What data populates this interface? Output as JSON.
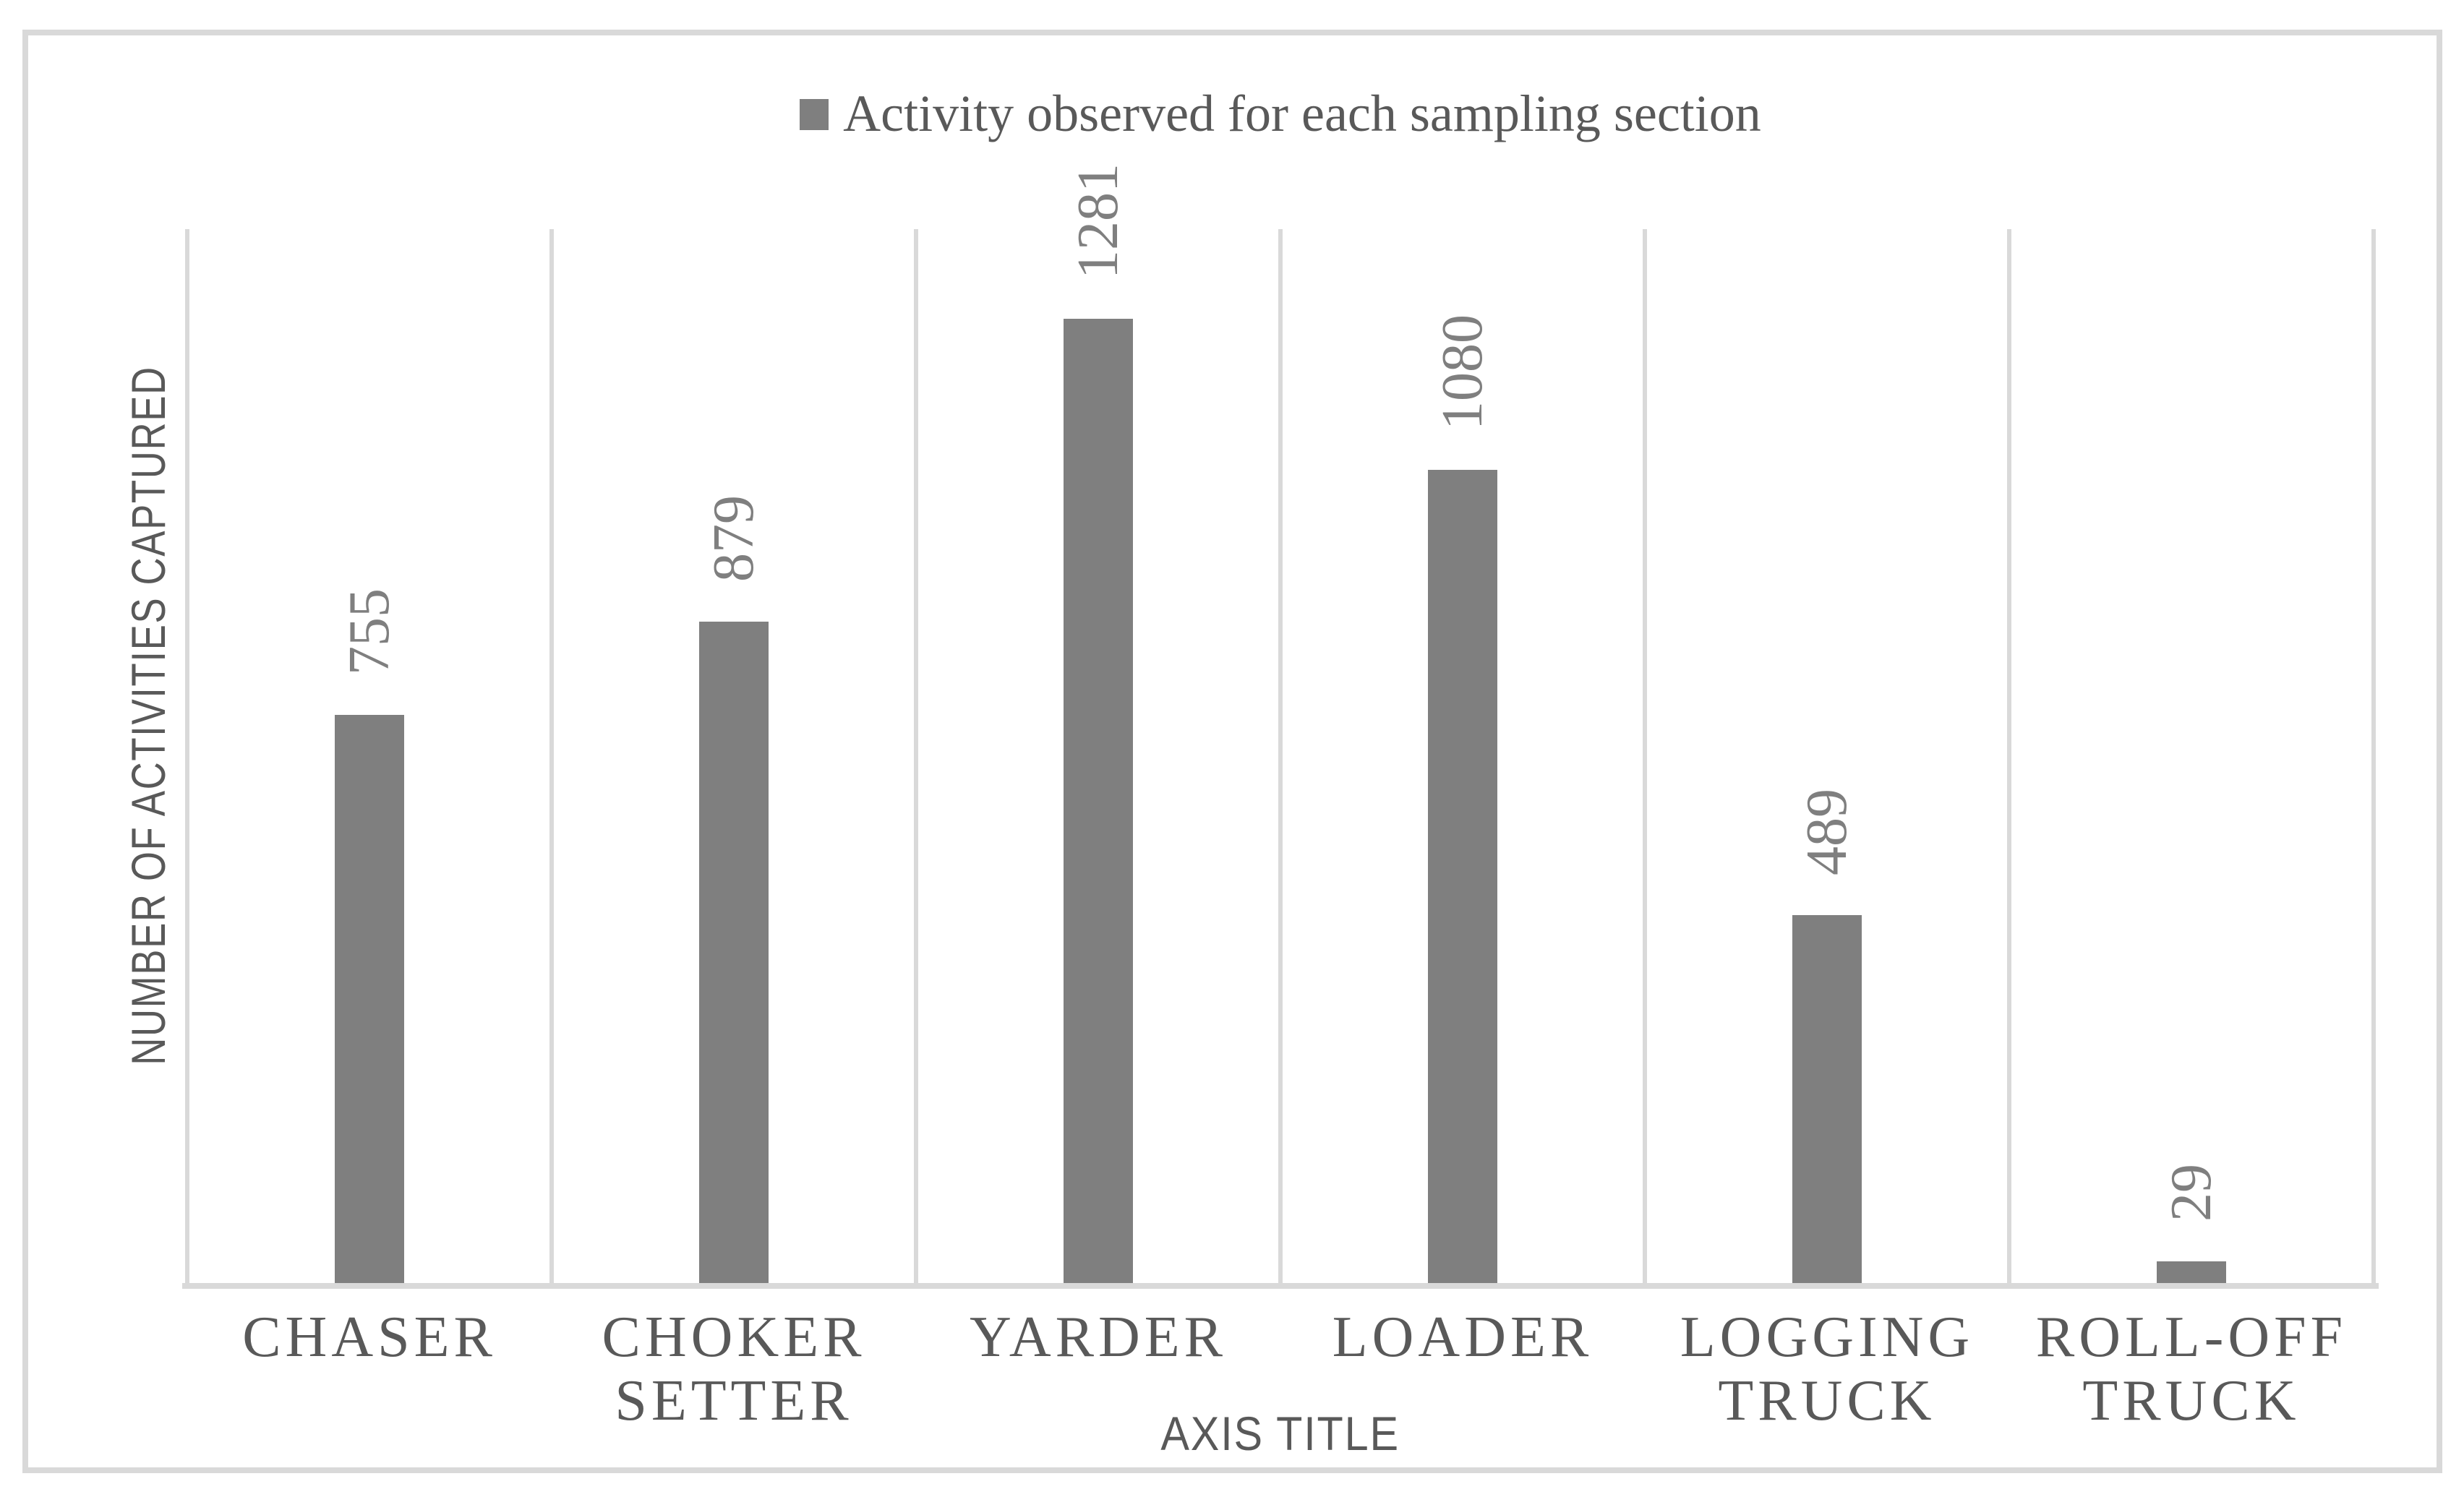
{
  "chart_data": {
    "type": "bar",
    "legend": "Activity observed for each sampling section",
    "legend_position": "top-center",
    "categories": [
      "CHASER",
      "CHOKER SETTER",
      "YARDER",
      "LOADER",
      "LOGGING TRUCK",
      "ROLL-OFF TRUCK"
    ],
    "values": [
      755,
      879,
      1281,
      1080,
      489,
      29
    ],
    "data_labels": [
      "755",
      "879",
      "1281",
      "1080",
      "489",
      "29"
    ],
    "data_label_orientation": "rotated-90",
    "xlabel": "AXIS TITLE",
    "ylabel": "NUMBER OF ACTIVITIES CAPTURED",
    "ylim": [
      0,
      1400
    ],
    "y_tick_labels_visible": false,
    "grid": "vertical category separators only",
    "colors": {
      "bar": "#7f7f7f",
      "data_label": "#7f7f7f",
      "axis_text": "#595959",
      "gridline": "#d9d9d9",
      "border": "#d9d9d9",
      "background": "#ffffff"
    }
  }
}
